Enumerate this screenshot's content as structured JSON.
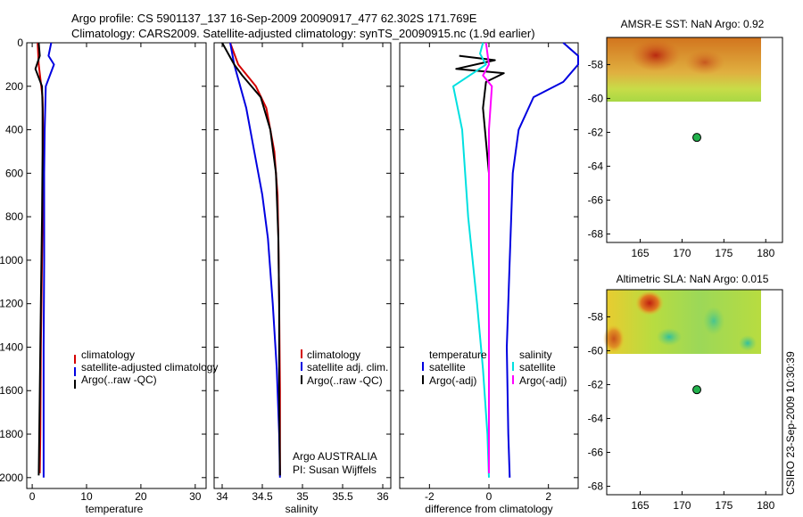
{
  "header": {
    "line1": "Argo profile: CS 5901137_137 16-Sep-2009 20090917_477 62.302S 171.769E",
    "line2": "Climatology: CARS2009. Satellite-adjusted climatology: synTS_20090915.nc (1.9d earlier)"
  },
  "credit": "CSIRO 23-Sep-2009 10:30:39",
  "colors": {
    "red": "#d40000",
    "blue": "#0000e0",
    "black": "#000000",
    "cyan": "#00e0e0",
    "magenta": "#ff00ff",
    "float_marker": "#22b14c"
  },
  "panels": {
    "temperature": {
      "xlabel": "temperature",
      "xticks": [
        0,
        10,
        20,
        30
      ],
      "xlim": [
        -1,
        32
      ],
      "legend": [
        "climatology",
        "satellite-adjusted climatology",
        "Argo(..raw -QC)"
      ]
    },
    "salinity": {
      "xlabel": "salinity",
      "xticks": [
        "34",
        "34.5",
        "35",
        "35.5",
        "36"
      ],
      "xlim": [
        33.9,
        36.1
      ],
      "legend": [
        "climatology",
        "satellite adj. clim.",
        "Argo(..raw -QC)"
      ],
      "note1": "Argo AUSTRALIA",
      "note2": "PI: Susan Wijffels"
    },
    "difference": {
      "xlabel": "difference from climatology",
      "xticks": [
        -2,
        0,
        2
      ],
      "xlim": [
        -3,
        3
      ],
      "legend_heads": [
        "temperature",
        "salinity"
      ],
      "legend_t": [
        "satellite",
        "Argo(-adj)"
      ],
      "legend_s": [
        "satellite",
        "Argo(-adj)"
      ]
    },
    "y_ticks": [
      0,
      200,
      400,
      600,
      800,
      1000,
      1200,
      1400,
      1600,
      1800,
      2000
    ],
    "ylim": [
      0,
      2050
    ]
  },
  "maps": {
    "sst": {
      "title": "AMSR-E SST: NaN Argo: 0.92"
    },
    "sla": {
      "title": "Altimetric SLA: NaN Argo: 0.015"
    },
    "xticks": [
      165,
      170,
      175,
      180
    ],
    "yticks": [
      -58,
      -60,
      -62,
      -64,
      -66,
      -68
    ],
    "xlim": [
      161,
      182
    ],
    "ylim": [
      -68.5,
      -56.4
    ],
    "float": {
      "lon": 171.769,
      "lat": -62.302
    }
  },
  "chart_data": [
    {
      "type": "line",
      "ylabel": "",
      "xlabel": "temperature",
      "series": [
        {
          "name": "climatology",
          "color": "#d40000",
          "x": [
            1.0,
            1.2,
            1.9,
            2.0,
            2.0,
            1.9,
            1.8,
            1.6,
            1.5,
            1.4
          ],
          "y": [
            0,
            100,
            250,
            400,
            600,
            800,
            1000,
            1400,
            1800,
            1980
          ]
        },
        {
          "name": "satellite-adjusted climatology",
          "color": "#0000e0",
          "x": [
            3.5,
            3.0,
            4.0,
            2.5,
            2.3,
            2.2,
            2.2,
            2.1,
            2.1,
            2.1
          ],
          "y": [
            0,
            60,
            100,
            200,
            400,
            600,
            1000,
            1400,
            1800,
            2000
          ]
        },
        {
          "name": "Argo(..raw -QC)",
          "color": "#000000",
          "x": [
            1.2,
            1.4,
            0.6,
            1.8,
            1.9,
            1.9,
            1.8,
            1.6,
            1.4,
            1.3,
            1.2
          ],
          "y": [
            0,
            60,
            120,
            200,
            300,
            500,
            800,
            1200,
            1600,
            1800,
            1990
          ]
        }
      ]
    },
    {
      "type": "line",
      "xlabel": "salinity",
      "series": [
        {
          "name": "climatology",
          "color": "#d40000",
          "x": [
            34.1,
            34.2,
            34.42,
            34.55,
            34.65,
            34.69,
            34.7,
            34.71,
            34.72,
            34.72
          ],
          "y": [
            0,
            100,
            200,
            300,
            500,
            700,
            900,
            1200,
            1600,
            1990
          ]
        },
        {
          "name": "satellite adj. clim.",
          "color": "#0000e0",
          "x": [
            34.1,
            34.15,
            34.3,
            34.4,
            34.5,
            34.57,
            34.63,
            34.68,
            34.71,
            34.72
          ],
          "y": [
            0,
            100,
            300,
            500,
            700,
            900,
            1200,
            1500,
            1800,
            2000
          ]
        },
        {
          "name": "Argo(..raw -QC)",
          "color": "#000000",
          "x": [
            34.0,
            34.15,
            34.25,
            34.48,
            34.6,
            34.67,
            34.7,
            34.71,
            34.71,
            34.72
          ],
          "y": [
            0,
            100,
            150,
            250,
            400,
            600,
            900,
            1200,
            1600,
            1990
          ]
        }
      ]
    },
    {
      "type": "line",
      "xlabel": "difference from climatology",
      "series": [
        {
          "name": "temperature satellite",
          "color": "#0000e0",
          "x": [
            2.5,
            3.5,
            3.2,
            2.5,
            1.5,
            1.0,
            0.8,
            0.7,
            0.6,
            0.65,
            0.7
          ],
          "y": [
            0,
            60,
            100,
            180,
            250,
            400,
            600,
            1000,
            1400,
            1800,
            2000
          ]
        },
        {
          "name": "temperature Argo(-adj)",
          "color": "#000000",
          "x": [
            -1.0,
            0.2,
            -1.1,
            0.5,
            -0.1,
            -0.2,
            0.0,
            0.0,
            0.0,
            0.0
          ],
          "y": [
            60,
            80,
            120,
            140,
            180,
            300,
            600,
            1000,
            1400,
            1980
          ]
        },
        {
          "name": "salinity satellite",
          "color": "#00e0e0",
          "x": [
            -0.2,
            -0.3,
            -0.1,
            -1.2,
            -0.9,
            -0.7,
            -0.4,
            -0.2,
            -0.05,
            0.0
          ],
          "y": [
            0,
            50,
            100,
            200,
            400,
            800,
            1200,
            1500,
            1800,
            2000
          ]
        },
        {
          "name": "salinity Argo(-adj)",
          "color": "#ff00ff",
          "x": [
            -0.1,
            0.0,
            -0.2,
            0.1,
            0.0,
            0.0,
            0.0,
            0.0
          ],
          "y": [
            0,
            100,
            150,
            200,
            400,
            800,
            1400,
            1980
          ]
        }
      ]
    }
  ]
}
